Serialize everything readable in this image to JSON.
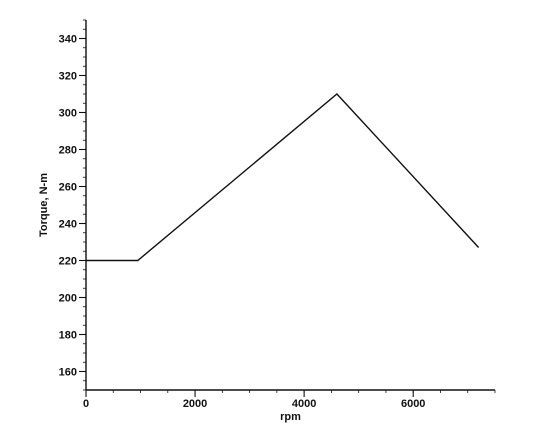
{
  "chart_data": {
    "type": "line",
    "title": "",
    "xlabel": "rpm",
    "ylabel": "Torque, N-m",
    "xlim": [
      0,
      7500
    ],
    "ylim": [
      150,
      350
    ],
    "xticks": [
      0,
      2000,
      4000,
      6000
    ],
    "yticks": [
      160,
      180,
      200,
      220,
      240,
      260,
      280,
      300,
      320,
      340
    ],
    "xticks_labels": [
      "0",
      "2000",
      "4000",
      "6000"
    ],
    "yticks_labels": [
      "160",
      "180",
      "200",
      "220",
      "240",
      "260",
      "280",
      "300",
      "320",
      "340"
    ],
    "grid": false,
    "legend": "none",
    "series": [
      {
        "x": [
          0,
          950,
          4600,
          7200
        ],
        "y": [
          220,
          220,
          310,
          227
        ],
        "color": "#111111"
      }
    ]
  }
}
